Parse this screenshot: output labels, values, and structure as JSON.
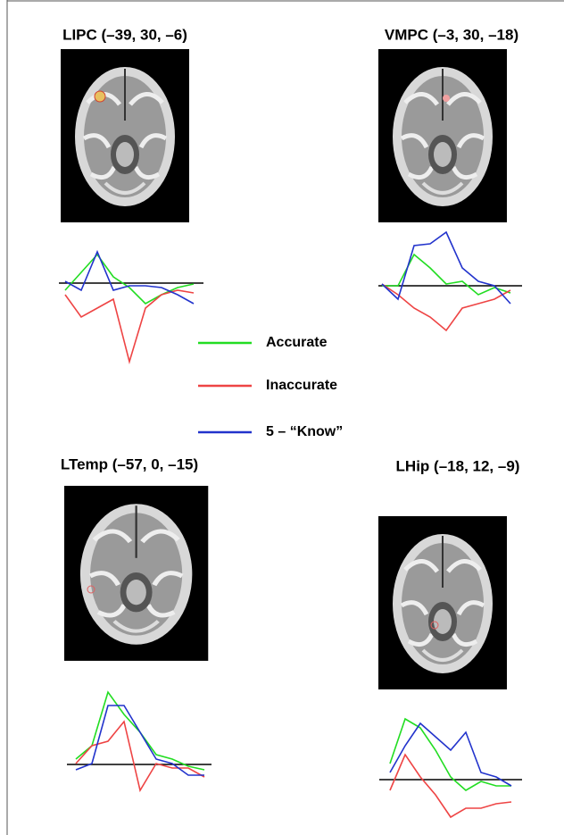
{
  "chart_data": [
    {
      "type": "line",
      "title": "LIPC (–39, 30, –6)",
      "series": [
        {
          "color": "#22dd22",
          "values": [
            -0.08,
            0.12,
            0.32,
            0.07,
            -0.05,
            -0.23,
            -0.13,
            -0.05,
            -0.01
          ]
        },
        {
          "color": "#ee4444",
          "values": [
            -0.13,
            -0.38,
            -0.28,
            -0.18,
            -0.88,
            -0.28,
            -0.13,
            -0.08,
            -0.11
          ]
        },
        {
          "color": "#2233cc",
          "values": [
            0.02,
            -0.08,
            0.35,
            -0.08,
            -0.03,
            -0.03,
            -0.05,
            -0.13,
            -0.23
          ]
        }
      ]
    },
    {
      "type": "line",
      "title": "VMPC (–3, 30, –18)",
      "series": [
        {
          "color": "#22dd22",
          "values": [
            0,
            0,
            0.35,
            0.2,
            0.02,
            0.05,
            -0.1,
            -0.02,
            -0.08
          ]
        },
        {
          "color": "#ee4444",
          "values": [
            0.02,
            -0.1,
            -0.25,
            -0.35,
            -0.5,
            -0.25,
            -0.2,
            -0.15,
            -0.05
          ]
        },
        {
          "color": "#2233cc",
          "values": [
            0.02,
            -0.15,
            0.45,
            0.47,
            0.6,
            0.2,
            0.05,
            0,
            -0.2
          ]
        }
      ]
    },
    {
      "type": "line",
      "title": "LTemp (–57, 0, –15)",
      "series": [
        {
          "color": "#22dd22",
          "values": [
            0.06,
            0.21,
            0.81,
            0.56,
            0.36,
            0.11,
            0.06,
            -0.02,
            -0.06
          ]
        },
        {
          "color": "#ee4444",
          "values": [
            0.01,
            0.21,
            0.26,
            0.48,
            -0.29,
            0.01,
            -0.04,
            -0.04,
            -0.14
          ]
        },
        {
          "color": "#2233cc",
          "values": [
            -0.06,
            0.01,
            0.66,
            0.66,
            0.36,
            0.06,
            0.01,
            -0.12,
            -0.12
          ]
        }
      ]
    },
    {
      "type": "line",
      "title": "LHip (–18, 12, –9)",
      "series": [
        {
          "color": "#22dd22",
          "values": [
            0.18,
            0.68,
            0.58,
            0.33,
            0.03,
            -0.12,
            -0.02,
            -0.07,
            -0.07
          ]
        },
        {
          "color": "#ee4444",
          "values": [
            -0.12,
            0.28,
            0.03,
            -0.17,
            -0.42,
            -0.32,
            -0.32,
            -0.27,
            -0.25
          ]
        },
        {
          "color": "#2233cc",
          "values": [
            0.08,
            0.38,
            0.63,
            0.48,
            0.33,
            0.53,
            0.08,
            0.03,
            -0.07
          ]
        }
      ]
    }
  ],
  "legend": [
    {
      "name": "Accurate",
      "color": "#22dd22"
    },
    {
      "name": "Inaccurate",
      "color": "#ee4444"
    },
    {
      "name": "5 – “Know”",
      "color": "#2233cc"
    }
  ]
}
